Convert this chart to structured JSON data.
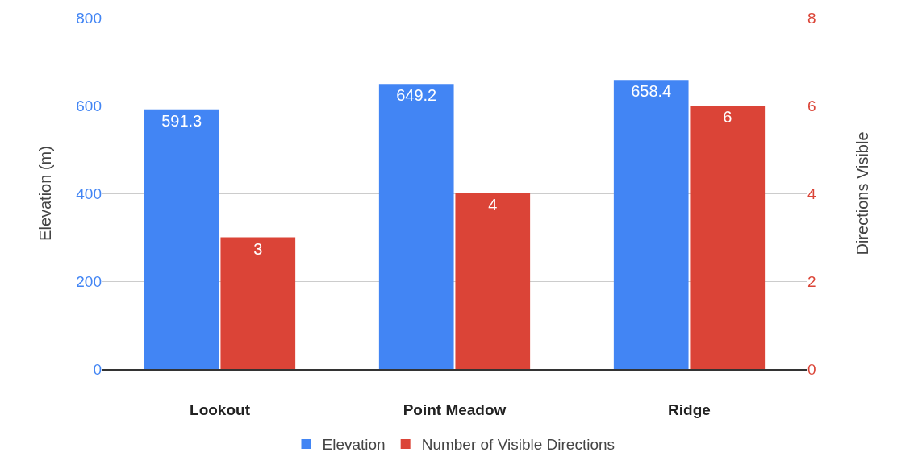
{
  "chart_data": {
    "type": "bar",
    "categories": [
      "Lookout",
      "Point Meadow",
      "Ridge"
    ],
    "series": [
      {
        "name": "Elevation",
        "color": "#4285f4",
        "values": [
          591.3,
          649.2,
          658.4
        ]
      },
      {
        "name": "Number of Visible Directions",
        "color": "#db4437",
        "values": [
          3,
          4,
          6
        ],
        "axis": "y2"
      }
    ],
    "ylabel": "Elevation (m)",
    "y2label": "Directions Visible",
    "ylim": [
      0,
      800
    ],
    "yticks": [
      0,
      200,
      400,
      600,
      800
    ],
    "y2lim": [
      0,
      8
    ],
    "y2ticks": [
      0,
      2,
      4,
      6,
      8
    ],
    "grid": "y",
    "legend": "bottom",
    "data_labels": true
  }
}
